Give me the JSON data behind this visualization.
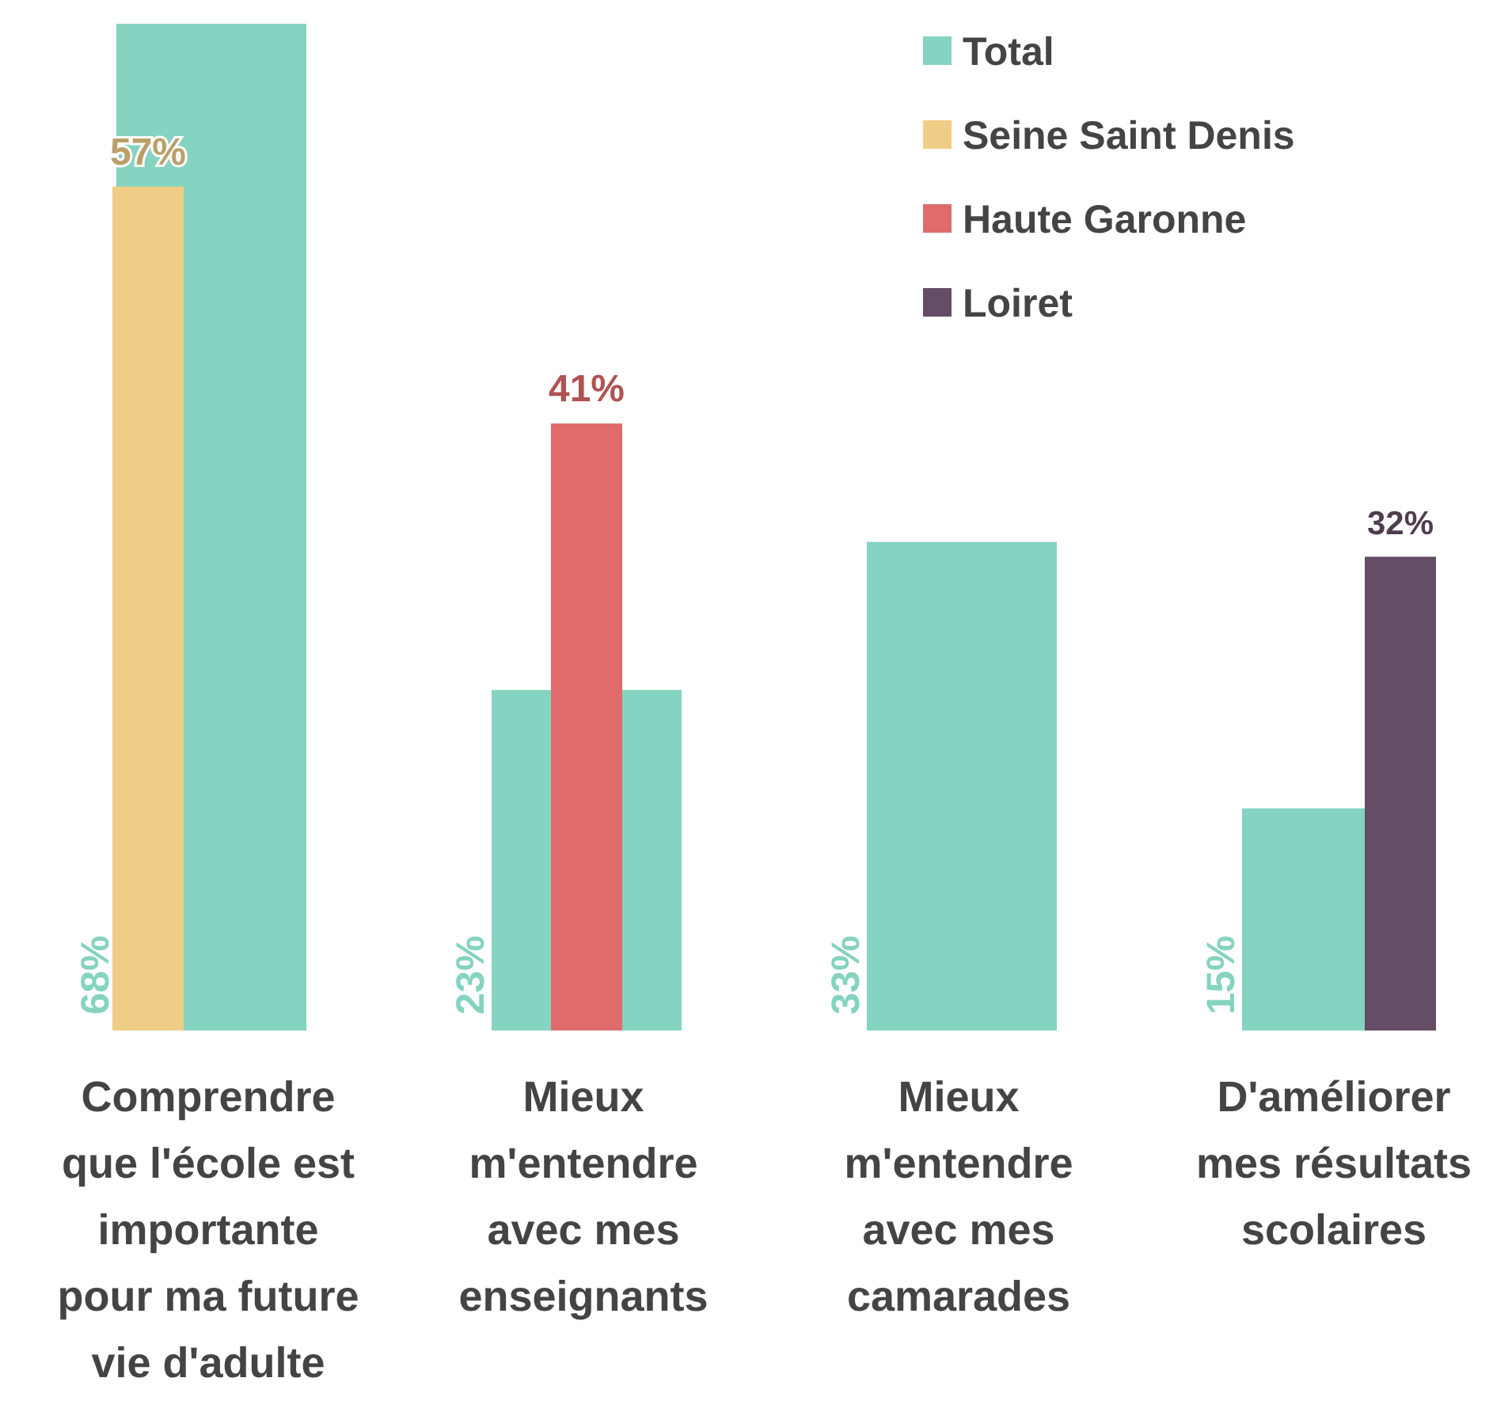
{
  "chart_data": {
    "type": "bar",
    "categories": [
      "Comprendre que l'école est importante pour ma future vie d'adulte",
      "Mieux m'entendre avec mes enseignants",
      "Mieux m'entendre avec mes camarades",
      "D'améliorer mes résultats scolaires"
    ],
    "series": [
      {
        "name": "Total",
        "color": "#85d3c1",
        "values": [
          68,
          23,
          33,
          15
        ],
        "value_labels": [
          "68%",
          "23%",
          "33%",
          "15%"
        ]
      },
      {
        "name": "Seine Saint Denis",
        "color": "#efcd86",
        "values": [
          57,
          null,
          null,
          null
        ],
        "value_labels": [
          "57%",
          null,
          null,
          null
        ]
      },
      {
        "name": "Haute Garonne",
        "color": "#e06b6b",
        "values": [
          null,
          41,
          null,
          null
        ],
        "value_labels": [
          null,
          "41%",
          null,
          null
        ]
      },
      {
        "name": "Loiret",
        "color": "#654d65",
        "values": [
          null,
          null,
          null,
          32
        ],
        "value_labels": [
          null,
          null,
          null,
          "32%"
        ]
      }
    ],
    "ylim": [
      0,
      68
    ],
    "legend": "top right"
  }
}
